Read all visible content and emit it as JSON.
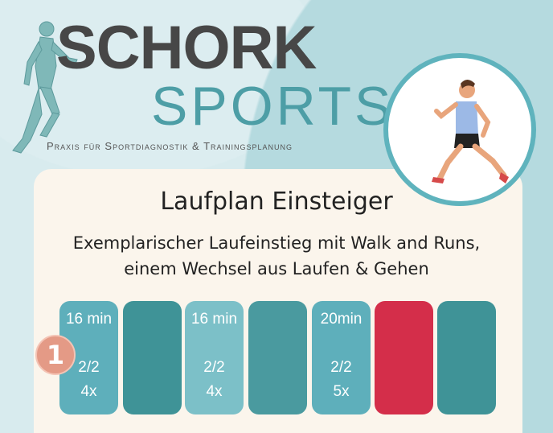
{
  "logo": {
    "line1": "SCHORK",
    "line2": "SPORTS",
    "tagline": "Praxis für Sportdiagnostik & Trainingsplanung"
  },
  "title": "Laufplan Einsteiger",
  "subtitle_line1": "Exemplarischer Laufeinstieg mit Walk and Runs,",
  "subtitle_line2": "einem Wechsel aus Laufen & Gehen",
  "badge": "1",
  "tiles": [
    {
      "duration": "16 min",
      "ratio": "2/2",
      "reps": "4x",
      "color": "#5eafbb"
    },
    {
      "duration": "",
      "ratio": "",
      "reps": "",
      "color": "#3f9397"
    },
    {
      "duration": "16 min",
      "ratio": "2/2",
      "reps": "4x",
      "color": "#7cc0c8"
    },
    {
      "duration": "",
      "ratio": "",
      "reps": "",
      "color": "#4a9a9f"
    },
    {
      "duration": "20min",
      "ratio": "2/2",
      "reps": "5x",
      "color": "#5eafbb"
    },
    {
      "duration": "",
      "ratio": "",
      "reps": "",
      "color": "#d42e4a"
    },
    {
      "duration": "",
      "ratio": "",
      "reps": "",
      "color": "#3f9397"
    }
  ]
}
